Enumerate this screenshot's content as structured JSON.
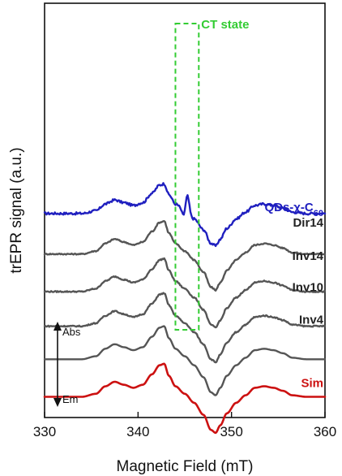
{
  "chart_data": {
    "type": "line",
    "title": "",
    "xlabel": "Magnetic Field (mT)",
    "ylabel": "trEPR signal (a.u.)",
    "xlim": [
      330,
      360
    ],
    "xticks": [
      330,
      340,
      350,
      360
    ],
    "xtick_labels": [
      "330",
      "340",
      "350",
      "360"
    ],
    "yticks": [],
    "grid": false,
    "series": [
      {
        "name": "QDs-χ-C60",
        "name_main": "QDs-χ-C",
        "name_sub": "60",
        "color": "#1f1fbf",
        "offset": 5.6,
        "scale": 0.9,
        "noise": 0.04,
        "peaks": [
          {
            "x": 345.3,
            "amp": 0.55,
            "width": 0.18
          },
          {
            "x": 344.85,
            "amp": -0.18,
            "width": 0.15
          }
        ]
      },
      {
        "name": "Dir14",
        "color": "#555555",
        "offset": 4.25,
        "scale": 1.0,
        "noise": 0.02,
        "peaks": []
      },
      {
        "name": "Inv14",
        "color": "#555555",
        "offset": 3.0,
        "scale": 1.0,
        "noise": 0.02,
        "peaks": []
      },
      {
        "name": "Inv10",
        "color": "#555555",
        "offset": 1.85,
        "scale": 1.0,
        "noise": 0.02,
        "peaks": []
      },
      {
        "name": "Inv4",
        "color": "#555555",
        "offset": 0.75,
        "scale": 1.0,
        "noise": 0.0,
        "peaks": []
      },
      {
        "name": "Sim",
        "color": "#cc1111",
        "offset": -0.5,
        "scale": 1.0,
        "noise": 0.0,
        "peaks": []
      }
    ],
    "base_shape": {
      "x": [
        330.0,
        334.0,
        335.5,
        336.5,
        337.5,
        338.5,
        339.5,
        340.5,
        341.5,
        342.3,
        342.8,
        343.3,
        344.0,
        345.0,
        346.0,
        347.0,
        347.8,
        348.3,
        348.8,
        349.5,
        350.5,
        351.5,
        352.5,
        353.5,
        354.5,
        355.5,
        356.5,
        358.0,
        360.0
      ],
      "y": [
        0.0,
        0.0,
        0.1,
        0.35,
        0.5,
        0.4,
        0.3,
        0.4,
        0.75,
        1.05,
        1.1,
        0.7,
        0.35,
        0.1,
        -0.2,
        -0.6,
        -1.1,
        -1.2,
        -0.95,
        -0.55,
        -0.2,
        0.05,
        0.3,
        0.35,
        0.3,
        0.2,
        0.05,
        0.0,
        0.0
      ]
    },
    "annotations": {
      "box_label": "CT state",
      "box_x": [
        344.0,
        346.5
      ],
      "arrow_top_label": "Abs",
      "arrow_bottom_label": "Em"
    }
  }
}
